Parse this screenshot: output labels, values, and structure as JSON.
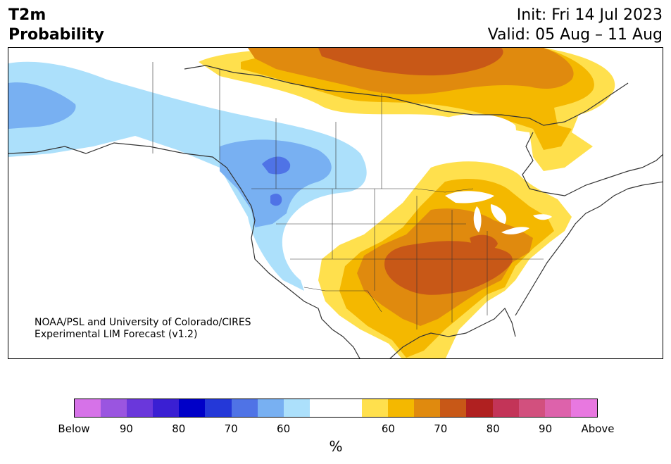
{
  "header": {
    "title_line1": "T2m",
    "title_line2": "Probability",
    "init_text": "Init: Fri 14 Jul 2023",
    "valid_text": "Valid: 05 Aug – 11 Aug"
  },
  "credit": {
    "line1": "NOAA/PSL and University of Colorado/CIRES",
    "line2": "Experimental LIM Forecast (v1.2)"
  },
  "colorbar": {
    "unit": "%",
    "colors": [
      "#d672e8",
      "#9a55e0",
      "#6a37db",
      "#3a1fd3",
      "#0000c8",
      "#2438d8",
      "#4f73e6",
      "#78b0f2",
      "#ace0fb",
      "#ffffff",
      "#ffffff",
      "#ffe04d",
      "#f4b800",
      "#e08a0e",
      "#c85817",
      "#b02020",
      "#c33458",
      "#d2507e",
      "#dd62ab",
      "#e878e0"
    ],
    "tick_labels": [
      {
        "text": "Below",
        "index": 0
      },
      {
        "text": "90",
        "index": 2
      },
      {
        "text": "80",
        "index": 4
      },
      {
        "text": "70",
        "index": 6
      },
      {
        "text": "60",
        "index": 8
      },
      {
        "text": "60",
        "index": 12
      },
      {
        "text": "70",
        "index": 14
      },
      {
        "text": "80",
        "index": 16
      },
      {
        "text": "90",
        "index": 18
      },
      {
        "text": "Above",
        "index": 20
      }
    ]
  },
  "map": {
    "colors": {
      "cold60": "#ace0fb",
      "cold70": "#78b0f2",
      "cold80": "#4f73e6",
      "warm60": "#ffe04d",
      "warm65": "#f4b800",
      "warm70": "#e08a0e",
      "warm75": "#c85817",
      "lakes": "#ffffff",
      "coastline": "#333333"
    }
  }
}
